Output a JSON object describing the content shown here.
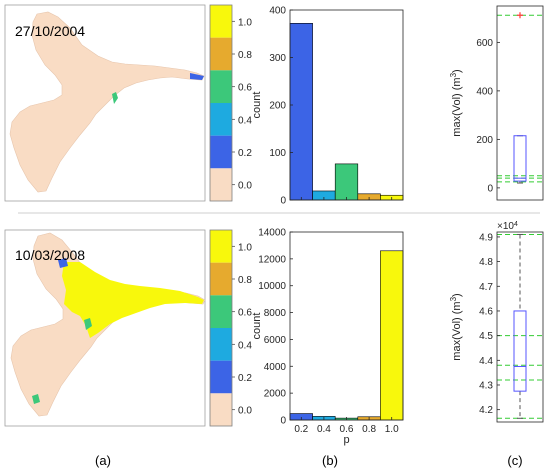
{
  "figure": {
    "captions": [
      "(a)",
      "(b)",
      "(c)"
    ]
  },
  "colors": {
    "cmap": [
      "#f9dcc4",
      "#3c64e6",
      "#1eaae0",
      "#3cc87a",
      "#e6aa2e",
      "#f8f80c"
    ],
    "bar_fill": [
      "#3c64e6",
      "#1eaae0",
      "#3cc87a",
      "#e6aa2e",
      "#f8f80c"
    ],
    "box": "#5555ff",
    "median": "#ff3b3b",
    "outlier": "#ff3b3b",
    "guide": "#33cc33",
    "whisker": "#555555"
  },
  "rows": [
    {
      "map": {
        "date": "27/10/2004",
        "colorbar_ticks": [
          "1.0",
          "0.8",
          "0.6",
          "0.4",
          "0.2",
          "0.0"
        ],
        "colorbar_segments": 6
      },
      "histogram": {
        "type": "bar",
        "ylabel": "count",
        "xlabel": "",
        "categories": [
          "0.2",
          "0.4",
          "0.6",
          "0.8",
          "1.0"
        ],
        "show_xtick_labels": false,
        "values": [
          372,
          19,
          76,
          13,
          10
        ],
        "ylim": [
          0,
          400
        ],
        "yticks": [
          0,
          100,
          200,
          300,
          400
        ],
        "ytick_labels": [
          "0",
          "100",
          "200",
          "300",
          "400"
        ]
      },
      "boxplot": {
        "type": "box",
        "ylabel_main": "max(Vol) (m",
        "ylabel_sup": "3",
        "ylabel_tail": ")",
        "exponent_label": "",
        "ylim": [
          -50,
          750
        ],
        "yticks": [
          0,
          200,
          400,
          600
        ],
        "ytick_labels": [
          "0",
          "200",
          "400",
          "600"
        ],
        "q1": 28,
        "median": 40,
        "q3": 215,
        "whisker_low": 20,
        "whisker_high": 215,
        "outliers": [
          712
        ],
        "guide_lines": [
          712,
          50,
          40,
          25
        ]
      }
    },
    {
      "map": {
        "date": "10/03/2008",
        "colorbar_ticks": [
          "1.0",
          "0.8",
          "0.6",
          "0.4",
          "0.2",
          "0.0"
        ],
        "colorbar_segments": 6
      },
      "histogram": {
        "type": "bar",
        "ylabel": "count",
        "xlabel": "p",
        "categories": [
          "0.2",
          "0.4",
          "0.6",
          "0.8",
          "1.0"
        ],
        "show_xtick_labels": true,
        "values": [
          480,
          270,
          140,
          240,
          12600
        ],
        "ylim": [
          0,
          14000
        ],
        "yticks": [
          0,
          2000,
          4000,
          6000,
          8000,
          10000,
          12000,
          14000
        ],
        "ytick_labels": [
          "0",
          "2000",
          "4000",
          "6000",
          "8000",
          "10000",
          "12000",
          "14000"
        ]
      },
      "boxplot": {
        "type": "box",
        "ylabel_main": "max(Vol) (m",
        "ylabel_sup": "3",
        "ylabel_tail": ")",
        "exponent_label": "×10",
        "exponent_sup": "4",
        "ylim": [
          4.15,
          4.92
        ],
        "yticks": [
          4.2,
          4.3,
          4.4,
          4.5,
          4.6,
          4.7,
          4.8,
          4.9
        ],
        "ytick_labels": [
          "4.2",
          "4.3",
          "4.4",
          "4.5",
          "4.6",
          "4.7",
          "4.8",
          "4.9"
        ],
        "q1": 4.275,
        "median": 4.375,
        "q3": 4.6,
        "whisker_low": 4.165,
        "whisker_high": 4.91,
        "outliers": [],
        "guide_lines": [
          4.91,
          4.5,
          4.38,
          4.32,
          4.165
        ]
      }
    }
  ]
}
